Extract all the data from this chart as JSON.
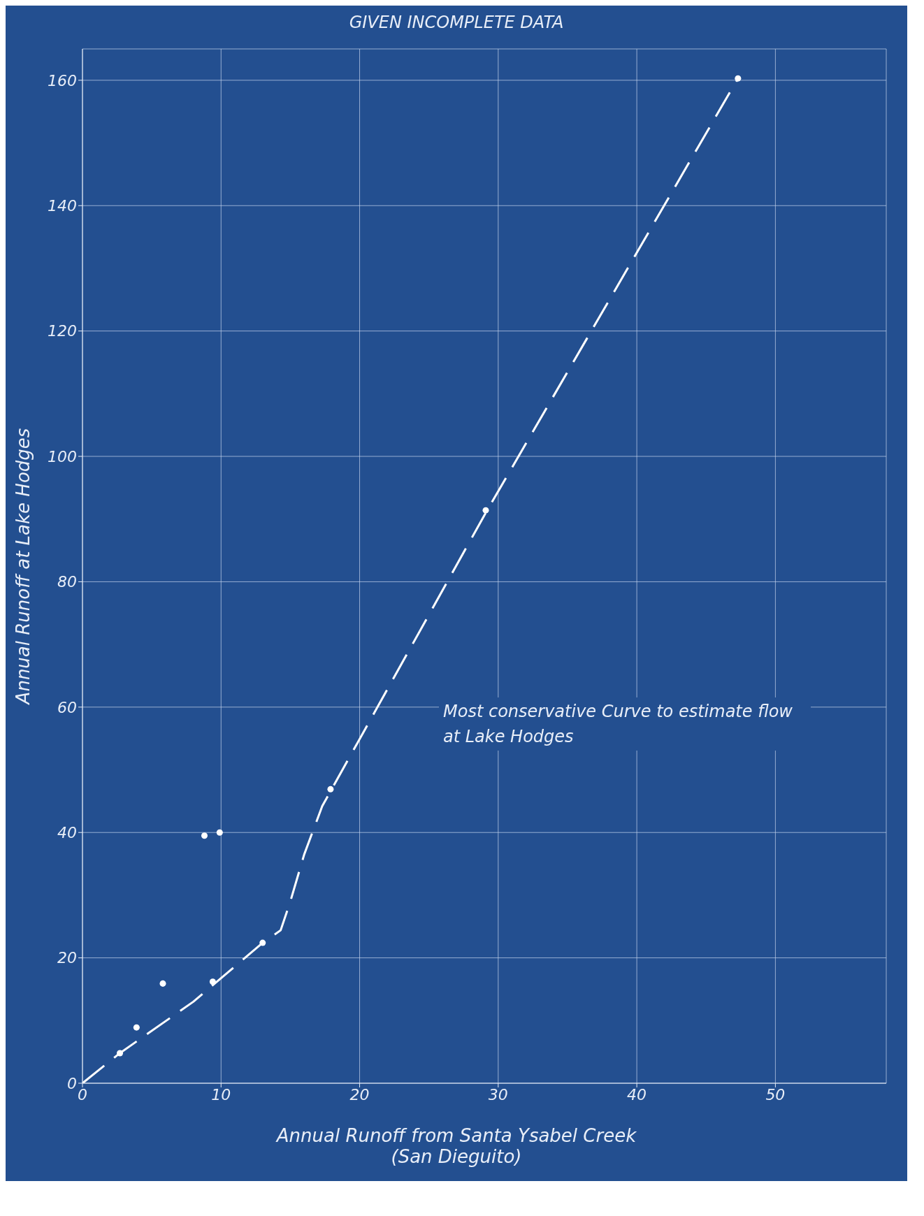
{
  "chart_data": {
    "type": "scatter",
    "title": "GIVEN INCOMPLETE DATA",
    "xlabel": "Annual Runoff from Santa Ysabel Creek (San Dieguito)",
    "ylabel": "Annual Runoff at Lake Hodges",
    "annotations": [
      "Most conservative Curve to estimate flow at Lake Hodges"
    ],
    "series": [
      {
        "color": "#ffffff",
        "marker": "circle",
        "x": [
          2.7,
          3.9,
          5.8,
          9.4,
          8.8,
          9.9,
          13.0,
          17.9,
          29.1,
          47.3
        ],
        "values": [
          4.8,
          8.9,
          15.9,
          16.2,
          39.5,
          40,
          22.4,
          46.9,
          91.4,
          160.3
        ]
      },
      {
        "type": "line",
        "color": "#ffffff",
        "line_style": "dashed",
        "x": [
          0,
          2.7,
          8,
          13,
          14.3,
          15,
          16,
          17.3,
          29.1,
          47.3
        ],
        "values": [
          0,
          4.8,
          13,
          22.4,
          24.4,
          29,
          36.5,
          44.2,
          91,
          160.3
        ]
      }
    ],
    "xlim": [
      0,
      58
    ],
    "ylim": [
      0,
      165
    ],
    "xticks": [
      0,
      10,
      20,
      30,
      40,
      50
    ],
    "yticks": [
      0,
      20,
      40,
      60,
      80,
      100,
      120,
      140,
      160
    ],
    "grid": true
  }
}
